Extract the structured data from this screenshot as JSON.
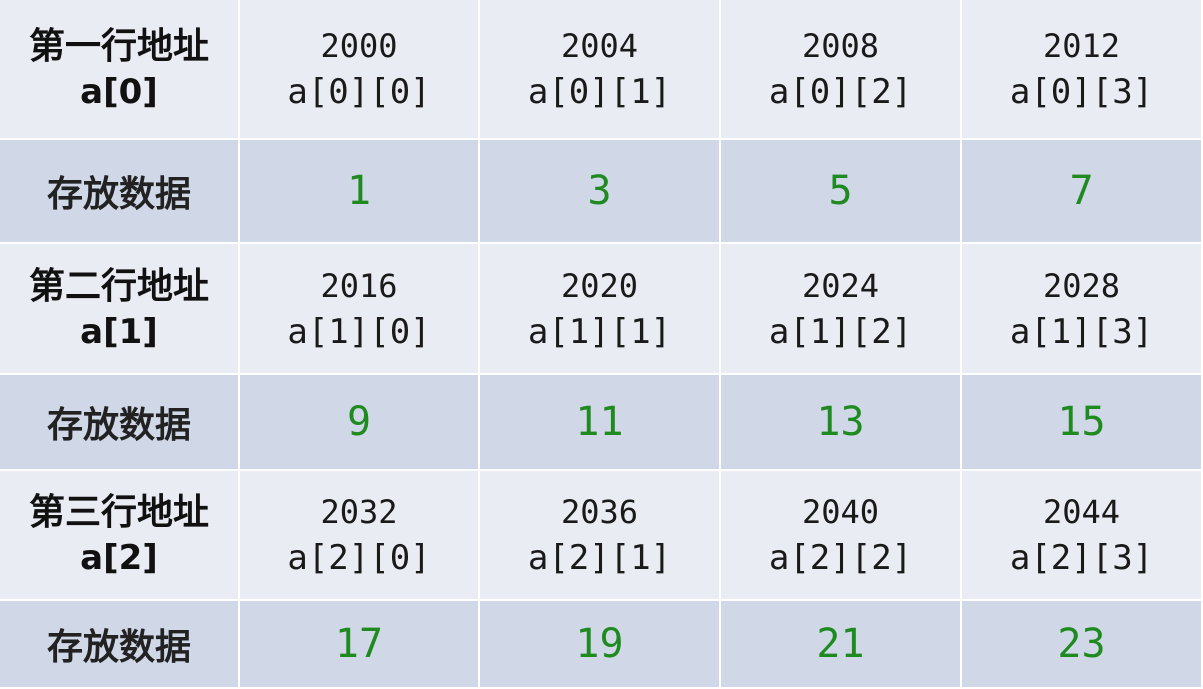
{
  "rows": [
    {
      "label": "第一行地址",
      "label_sub": "a[0]",
      "addresses": [
        {
          "addr": "2000",
          "elem": "a[0][0]"
        },
        {
          "addr": "2004",
          "elem": "a[0][1]"
        },
        {
          "addr": "2008",
          "elem": "a[0][2]"
        },
        {
          "addr": "2012",
          "elem": "a[0][3]"
        }
      ],
      "data_label": "存放数据",
      "values": [
        "1",
        "3",
        "5",
        "7"
      ]
    },
    {
      "label": "第二行地址",
      "label_sub": "a[1]",
      "addresses": [
        {
          "addr": "2016",
          "elem": "a[1][0]"
        },
        {
          "addr": "2020",
          "elem": "a[1][1]"
        },
        {
          "addr": "2024",
          "elem": "a[1][2]"
        },
        {
          "addr": "2028",
          "elem": "a[1][3]"
        }
      ],
      "data_label": "存放数据",
      "values": [
        "9",
        "11",
        "13",
        "15"
      ]
    },
    {
      "label": "第三行地址",
      "label_sub": "a[2]",
      "addresses": [
        {
          "addr": "2032",
          "elem": "a[2][0]"
        },
        {
          "addr": "2036",
          "elem": "a[2][1]"
        },
        {
          "addr": "2040",
          "elem": "a[2][2]"
        },
        {
          "addr": "2044",
          "elem": "a[2][3]"
        }
      ],
      "data_label": "存放数据",
      "values": [
        "17",
        "19",
        "21",
        "23"
      ]
    }
  ],
  "colors": {
    "address_row_bg": "#e9ecf3",
    "data_row_bg": "#d0d8e8",
    "value_text": "#1f8a1f"
  }
}
